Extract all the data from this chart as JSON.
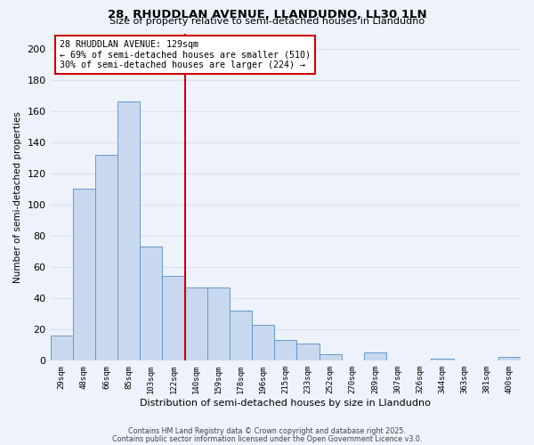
{
  "title1": "28, RHUDDLAN AVENUE, LLANDUDNO, LL30 1LN",
  "title2": "Size of property relative to semi-detached houses in Llandudno",
  "xlabel": "Distribution of semi-detached houses by size in Llandudno",
  "ylabel": "Number of semi-detached properties",
  "bin_labels": [
    "29sqm",
    "48sqm",
    "66sqm",
    "85sqm",
    "103sqm",
    "122sqm",
    "140sqm",
    "159sqm",
    "178sqm",
    "196sqm",
    "215sqm",
    "233sqm",
    "252sqm",
    "270sqm",
    "289sqm",
    "307sqm",
    "326sqm",
    "344sqm",
    "363sqm",
    "381sqm",
    "400sqm"
  ],
  "bar_values": [
    16,
    110,
    132,
    166,
    73,
    54,
    47,
    47,
    32,
    23,
    13,
    11,
    4,
    0,
    5,
    0,
    0,
    1,
    0,
    0,
    2
  ],
  "bar_color": "#c8d8ee",
  "bar_edge_color": "#6699cc",
  "vline_x": 5.5,
  "vline_color": "#cc0000",
  "annotation_title": "28 RHUDDLAN AVENUE: 129sqm",
  "annotation_line1": "← 69% of semi-detached houses are smaller (510)",
  "annotation_line2": "30% of semi-detached houses are larger (224) →",
  "annotation_box_color": "#ffffff",
  "annotation_box_edge": "#cc0000",
  "ylim": [
    0,
    210
  ],
  "yticks": [
    0,
    20,
    40,
    60,
    80,
    100,
    120,
    140,
    160,
    180,
    200
  ],
  "footer1": "Contains HM Land Registry data © Crown copyright and database right 2025.",
  "footer2": "Contains public sector information licensed under the Open Government Licence v3.0.",
  "bg_color": "#eef2fb",
  "grid_color": "#d8e0f0"
}
